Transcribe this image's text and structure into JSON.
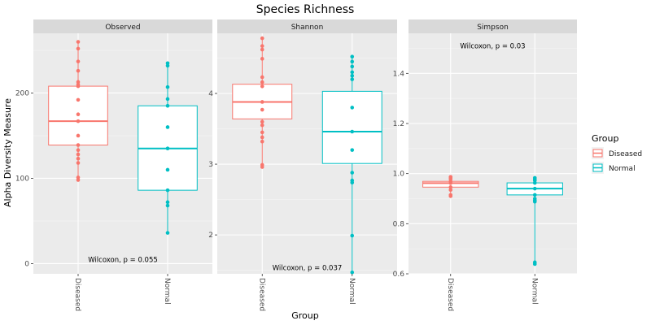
{
  "chart_data": {
    "type": "boxplot",
    "title": "Species Richness",
    "xlabel": "Group",
    "ylabel": "Alpha Diversity Measure",
    "categories": [
      "Diseased",
      "Normal"
    ],
    "legend": {
      "title": "Group",
      "position": "right",
      "entries": [
        {
          "label": "Diseased",
          "color": "#F8766D"
        },
        {
          "label": "Normal",
          "color": "#00BFC4"
        }
      ]
    },
    "panels": [
      {
        "name": "Observed",
        "ylim": [
          -12,
          270
        ],
        "yticks": [
          0,
          100,
          200
        ],
        "annotation": "Wilcoxon, p = 0.055",
        "annotation_at": {
          "x": 1.5,
          "y": 2
        },
        "boxes": [
          {
            "group": "Diseased",
            "q1": 139,
            "median": 167,
            "q3": 208,
            "points": [
              260,
              252,
              237,
              226,
              213,
              210,
              208,
              192,
              175,
              167,
              150,
              139,
              133,
              128,
              123,
              118,
              101,
              98
            ]
          },
          {
            "group": "Normal",
            "q1": 86,
            "median": 135,
            "q3": 185,
            "points": [
              235,
              232,
              207,
              193,
              185,
              160,
              135,
              110,
              86,
              72,
              68,
              36
            ]
          }
        ]
      },
      {
        "name": "Shannon",
        "ylim": [
          1.45,
          4.85
        ],
        "yticks": [
          2,
          3,
          4
        ],
        "annotation": "Wilcoxon, p = 0.037",
        "annotation_at": {
          "x": 1.5,
          "y": 1.5
        },
        "boxes": [
          {
            "group": "Diseased",
            "q1": 3.64,
            "median": 3.88,
            "q3": 4.13,
            "points": [
              4.78,
              4.67,
              4.62,
              4.49,
              4.23,
              4.16,
              4.1,
              3.88,
              3.77,
              3.6,
              3.55,
              3.45,
              3.38,
              3.32,
              2.99,
              2.96
            ]
          },
          {
            "group": "Normal",
            "q1": 3.01,
            "median": 3.46,
            "q3": 4.03,
            "points": [
              4.52,
              4.45,
              4.38,
              4.3,
              4.25,
              4.2,
              3.8,
              3.46,
              3.2,
              2.88,
              2.77,
              2.74,
              1.99,
              1.47
            ]
          }
        ]
      },
      {
        "name": "Simpson",
        "ylim": [
          0.6,
          1.56
        ],
        "yticks": [
          0.6,
          0.8,
          1.0,
          1.2,
          1.4
        ],
        "annotation": "Wilcoxon, p = 0.03",
        "annotation_at": {
          "x": 1.5,
          "y": 1.5
        },
        "boxes": [
          {
            "group": "Diseased",
            "q1": 0.946,
            "median": 0.962,
            "q3": 0.969,
            "points": [
              0.987,
              0.983,
              0.978,
              0.969,
              0.962,
              0.946,
              0.935,
              0.915,
              0.91
            ]
          },
          {
            "group": "Normal",
            "q1": 0.915,
            "median": 0.94,
            "q3": 0.963,
            "points": [
              0.983,
              0.978,
              0.972,
              0.963,
              0.94,
              0.915,
              0.9,
              0.893,
              0.888,
              0.646,
              0.639
            ]
          }
        ]
      }
    ],
    "grid": true
  }
}
